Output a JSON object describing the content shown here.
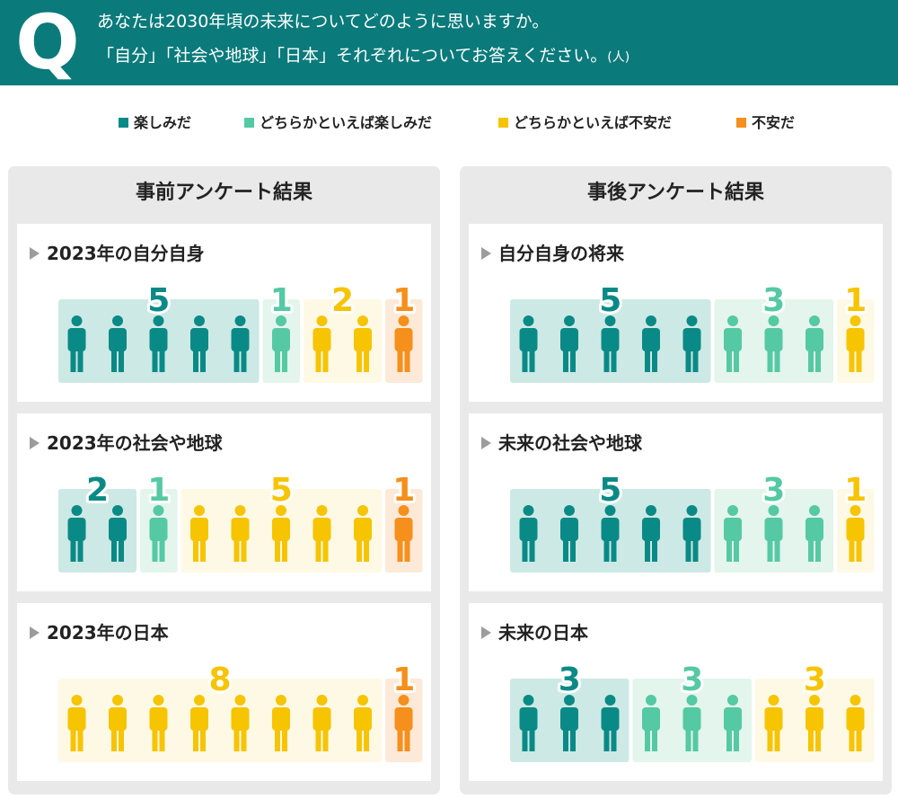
{
  "question": {
    "mark": "Q",
    "line1": "あなたは2030年頃の未来についてどのように思いますか。",
    "line2": "「自分」「社会や地球」「日本」それぞれについてお答えください。",
    "unit": "(人)"
  },
  "colors": {
    "teal": "#0a8a86",
    "mint": "#55c9a3",
    "yellow": "#f6c400",
    "orange": "#f4901b"
  },
  "legend": [
    {
      "label": "楽しみだ",
      "color": "#0a8a86"
    },
    {
      "label": "どちらかといえば楽しみだ",
      "color": "#55c9a3"
    },
    {
      "label": "どちらかといえば不安だ",
      "color": "#f6c400"
    },
    {
      "label": "不安だ",
      "color": "#f4901b"
    }
  ],
  "panels": [
    {
      "title": "事前アンケート結果"
    },
    {
      "title": "事後アンケート結果"
    }
  ],
  "chart_data": [
    {
      "type": "bar",
      "title": "2023年の自分自身",
      "categories": [
        "楽しみだ",
        "どちらかといえば楽しみだ",
        "どちらかといえば不安だ",
        "不安だ"
      ],
      "values": [
        5,
        1,
        2,
        1
      ]
    },
    {
      "type": "bar",
      "title": "2023年の社会や地球",
      "categories": [
        "楽しみだ",
        "どちらかといえば楽しみだ",
        "どちらかといえば不安だ",
        "不安だ"
      ],
      "values": [
        2,
        1,
        5,
        1
      ]
    },
    {
      "type": "bar",
      "title": "2023年の日本",
      "categories": [
        "楽しみだ",
        "どちらかといえば楽しみだ",
        "どちらかといえば不安だ",
        "不安だ"
      ],
      "values": [
        0,
        0,
        8,
        1
      ]
    },
    {
      "type": "bar",
      "title": "自分自身の将来",
      "categories": [
        "楽しみだ",
        "どちらかといえば楽しみだ",
        "どちらかといえば不安だ",
        "不安だ"
      ],
      "values": [
        5,
        3,
        1,
        0
      ]
    },
    {
      "type": "bar",
      "title": "未来の社会や地球",
      "categories": [
        "楽しみだ",
        "どちらかといえば楽しみだ",
        "どちらかといえば不安だ",
        "不安だ"
      ],
      "values": [
        5,
        3,
        1,
        0
      ]
    },
    {
      "type": "bar",
      "title": "未来の日本",
      "categories": [
        "楽しみだ",
        "どちらかといえば楽しみだ",
        "どちらかといえば不安だ",
        "不安だ"
      ],
      "values": [
        3,
        3,
        3,
        0
      ]
    }
  ]
}
